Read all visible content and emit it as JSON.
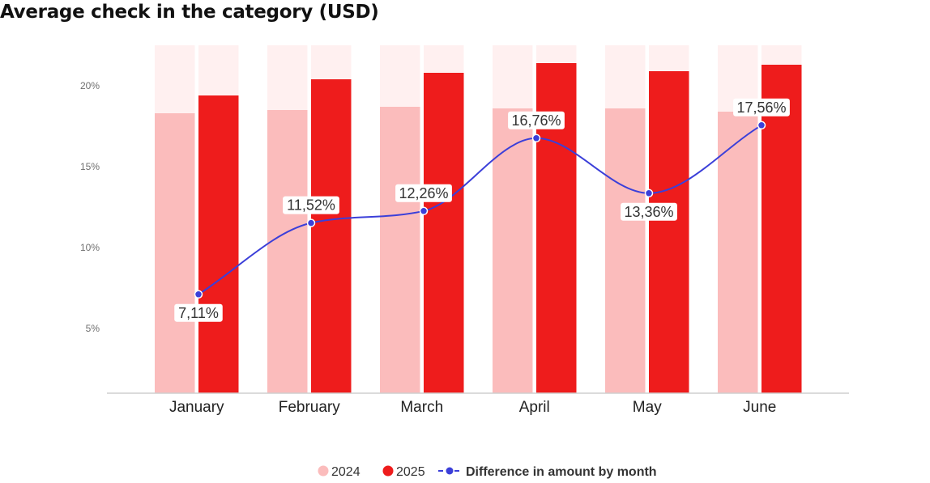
{
  "title": "Average check in the category (USD)",
  "chart_data": {
    "type": "bar",
    "categories": [
      "January",
      "February",
      "March",
      "April",
      "May",
      "June"
    ],
    "series": [
      {
        "name": "2024",
        "type": "bar",
        "color": "#fbbcbc",
        "values": [
          18.3,
          18.5,
          18.7,
          18.6,
          18.6,
          18.4
        ]
      },
      {
        "name": "2025",
        "type": "bar",
        "color": "#ee1c1c",
        "values": [
          19.4,
          20.4,
          20.8,
          21.4,
          20.9,
          21.3
        ]
      },
      {
        "name": "Difference in amount by month",
        "type": "line",
        "color": "#3b3fd9",
        "values": [
          7.11,
          11.52,
          12.26,
          16.76,
          13.36,
          17.56
        ],
        "labels": [
          "7,11%",
          "11,52%",
          "12,26%",
          "16,76%",
          "13,36%",
          "17,56%"
        ]
      }
    ],
    "yticks": [
      {
        "value": 5,
        "label": "5%"
      },
      {
        "value": 10,
        "label": "10%"
      },
      {
        "value": 15,
        "label": "15%"
      },
      {
        "value": 20,
        "label": "20%"
      }
    ],
    "ylim": [
      1,
      22.5
    ],
    "grid": false,
    "background_bar_color": "#fff0f0",
    "legend_position": "bottom-center"
  }
}
